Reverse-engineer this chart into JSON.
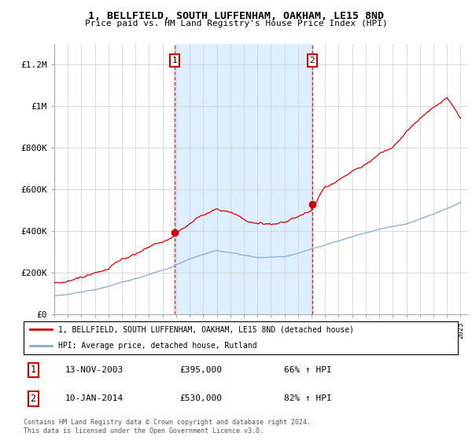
{
  "title": "1, BELLFIELD, SOUTH LUFFENHAM, OAKHAM, LE15 8ND",
  "subtitle": "Price paid vs. HM Land Registry's House Price Index (HPI)",
  "legend_line1": "1, BELLFIELD, SOUTH LUFFENHAM, OAKHAM, LE15 8ND (detached house)",
  "legend_line2": "HPI: Average price, detached house, Rutland",
  "transaction1_date": "13-NOV-2003",
  "transaction1_price": "£395,000",
  "transaction1_hpi": "66% ↑ HPI",
  "transaction1_value": 395000,
  "transaction1_year": 2003.88,
  "transaction2_date": "10-JAN-2014",
  "transaction2_price": "£530,000",
  "transaction2_hpi": "82% ↑ HPI",
  "transaction2_value": 530000,
  "transaction2_year": 2014.04,
  "footer": "Contains HM Land Registry data © Crown copyright and database right 2024.\nThis data is licensed under the Open Government Licence v3.0.",
  "house_color": "#cc0000",
  "hpi_color": "#88aacc",
  "shade_color": "#ddeeff",
  "background_plot": "#f8f8f8",
  "grid_color": "#cccccc",
  "ylim_max": 1300000,
  "xlim_min": 1995,
  "xlim_max": 2025.5,
  "yticks": [
    0,
    200000,
    400000,
    600000,
    800000,
    1000000,
    1200000
  ],
  "ytick_labels": [
    "£0",
    "£200K",
    "£400K",
    "£600K",
    "£800K",
    "£1M",
    "£1.2M"
  ]
}
